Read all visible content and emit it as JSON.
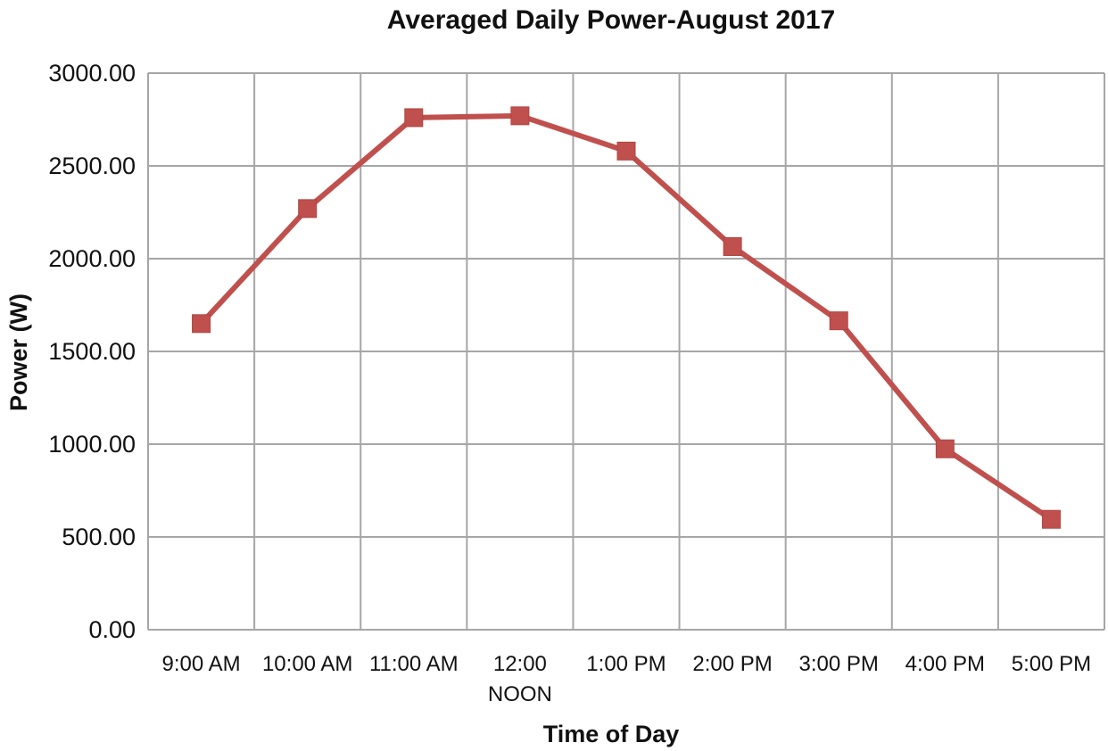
{
  "chart_data": {
    "type": "line",
    "title": "Averaged Daily Power-August 2017",
    "xlabel": "Time of Day",
    "ylabel": "Power (W)",
    "categories": [
      [
        "9:00 AM"
      ],
      [
        "10:00 AM"
      ],
      [
        "11:00 AM"
      ],
      [
        "12:00",
        "NOON"
      ],
      [
        "1:00 PM"
      ],
      [
        "2:00 PM"
      ],
      [
        "3:00 PM"
      ],
      [
        "4:00 PM"
      ],
      [
        "5:00 PM"
      ]
    ],
    "series": [
      {
        "values": [
          1650,
          2270,
          2760,
          2770,
          2580,
          2065,
          1665,
          975,
          595
        ],
        "color": "#c0504d",
        "marker": "square"
      }
    ],
    "ylim": [
      0,
      3000
    ],
    "yticks": [
      0,
      500,
      1000,
      1500,
      2000,
      2500,
      3000
    ],
    "ytick_labels": [
      "0.00",
      "500.00",
      "1000.00",
      "1500.00",
      "2000.00",
      "2500.00",
      "3000.00"
    ],
    "grid": true,
    "legend": "none",
    "grid_color": "#a6a6a6"
  }
}
